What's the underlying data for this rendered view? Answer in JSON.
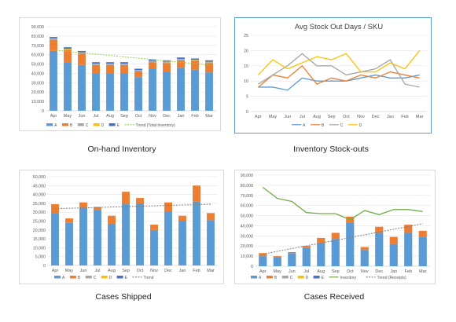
{
  "captions": {
    "onhand": "On-hand Inventory",
    "stockouts": "Inventory Stock-outs",
    "shipped": "Cases Shipped",
    "received": "Cases Received"
  },
  "months": [
    "Apr",
    "May",
    "Jun",
    "Jul",
    "Aug",
    "Sep",
    "Oct",
    "Nov",
    "Dec",
    "Jan",
    "Feb",
    "Mar"
  ],
  "colors": {
    "A": "#5b9bd5",
    "B": "#ed7d31",
    "C": "#a5a5a5",
    "D": "#ffc000",
    "E": "#4472c4",
    "inventory": "#70ad47",
    "trendGreen": "#92d050",
    "trendGray": "#7f7f7f"
  },
  "chart_data": [
    {
      "id": "onhand",
      "type": "bar",
      "stacked": true,
      "categories": [
        "Apr",
        "May",
        "Jun",
        "Jul",
        "Aug",
        "Sep",
        "Oct",
        "Nov",
        "Dec",
        "Jan",
        "Feb",
        "Mar"
      ],
      "ylim": [
        0,
        90000
      ],
      "yticks": [
        "0",
        "10,000",
        "20,000",
        "30,000",
        "40,000",
        "50,000",
        "60,000",
        "70,000",
        "80,000",
        "90,000"
      ],
      "series": [
        {
          "name": "A",
          "values": [
            64000,
            52000,
            49000,
            40000,
            40000,
            40000,
            36000,
            45000,
            42000,
            46000,
            44000,
            41000
          ]
        },
        {
          "name": "B",
          "values": [
            12000,
            13000,
            12000,
            9000,
            9000,
            9000,
            6000,
            7000,
            9000,
            8000,
            9000,
            10000
          ]
        },
        {
          "name": "C",
          "values": [
            1000,
            1000,
            1000,
            1000,
            1000,
            1000,
            1000,
            1000,
            1000,
            1000,
            1000,
            1000
          ]
        },
        {
          "name": "D",
          "values": [
            500,
            500,
            500,
            500,
            500,
            500,
            500,
            500,
            500,
            500,
            500,
            500
          ]
        },
        {
          "name": "E",
          "values": [
            1500,
            1500,
            1500,
            1500,
            1500,
            1500,
            1500,
            1500,
            1500,
            1500,
            1500,
            1500
          ]
        }
      ],
      "trend": {
        "name": "Trend (Total Inventory)",
        "start": 65000,
        "end": 49000
      },
      "legend": [
        "A",
        "B",
        "C",
        "D",
        "E",
        "Trend (Total Inventory)"
      ],
      "grid": true,
      "legend_position": "bottom"
    },
    {
      "id": "stockouts",
      "type": "line",
      "title": "Avg Stock Out Days / SKU",
      "categories": [
        "Apr",
        "May",
        "Jun",
        "Jul",
        "Aug",
        "Sep",
        "Oct",
        "Nov",
        "Dec",
        "Jan",
        "Feb",
        "Mar"
      ],
      "ylim": [
        0,
        25
      ],
      "yticks": [
        "0",
        "5",
        "10",
        "15",
        "20",
        "25"
      ],
      "series": [
        {
          "name": "A",
          "values": [
            8,
            8,
            7,
            11,
            10,
            10,
            10,
            11,
            12,
            11,
            11,
            12
          ]
        },
        {
          "name": "B",
          "values": [
            8,
            12,
            11,
            15,
            9,
            11,
            10,
            12,
            11,
            13,
            12,
            11
          ]
        },
        {
          "name": "C",
          "values": [
            9,
            12,
            15,
            19,
            15,
            15,
            12,
            13,
            14,
            17,
            9,
            8
          ]
        },
        {
          "name": "D",
          "values": [
            12,
            17,
            14,
            16,
            18,
            17,
            19,
            13,
            13,
            16,
            14,
            20
          ]
        }
      ],
      "legend": [
        "A",
        "B",
        "C",
        "D"
      ],
      "grid": true,
      "legend_position": "bottom"
    },
    {
      "id": "shipped",
      "type": "bar",
      "stacked": true,
      "categories": [
        "Apr",
        "May",
        "Jun",
        "Jul",
        "Aug",
        "Sep",
        "Oct",
        "Nov",
        "Dec",
        "Jan",
        "Feb",
        "Mar"
      ],
      "ylim": [
        0,
        50000
      ],
      "yticks": [
        "0",
        "5,000",
        "10,000",
        "15,000",
        "20,000",
        "25,000",
        "30,000",
        "35,000",
        "40,000",
        "45,000",
        "50,000"
      ],
      "series": [
        {
          "name": "A",
          "values": [
            29500,
            24000,
            32500,
            31000,
            23500,
            34500,
            35000,
            20000,
            30500,
            25000,
            36000,
            25500
          ]
        },
        {
          "name": "B",
          "values": [
            5000,
            2500,
            3000,
            2000,
            4500,
            7000,
            3000,
            3000,
            5000,
            3000,
            9000,
            4000
          ]
        },
        {
          "name": "C",
          "values": [
            0,
            0,
            0,
            0,
            0,
            0,
            0,
            0,
            0,
            0,
            0,
            0
          ]
        },
        {
          "name": "D",
          "values": [
            0,
            0,
            0,
            0,
            0,
            0,
            0,
            0,
            0,
            0,
            0,
            0
          ]
        },
        {
          "name": "E",
          "values": [
            0,
            0,
            0,
            0,
            0,
            0,
            0,
            0,
            0,
            0,
            0,
            0
          ]
        }
      ],
      "trend": {
        "name": "Trend",
        "start": 32000,
        "end": 34500
      },
      "legend": [
        "A",
        "B",
        "C",
        "D",
        "E",
        "Trend"
      ],
      "grid": true,
      "legend_position": "bottom"
    },
    {
      "id": "received",
      "type": "bar",
      "stacked": true,
      "categories": [
        "Apr",
        "May",
        "Jun",
        "Jul",
        "Aug",
        "Sep",
        "Oct",
        "Nov",
        "Dec",
        "Jan",
        "Feb",
        "Mar"
      ],
      "ylim": [
        0,
        90000
      ],
      "yticks": [
        "0",
        "10,000",
        "20,000",
        "30,000",
        "40,000",
        "50,000",
        "60,000",
        "70,000",
        "80,000",
        "90,000"
      ],
      "series": [
        {
          "name": "A",
          "values": [
            10000,
            9000,
            13000,
            18000,
            23000,
            27000,
            43000,
            16000,
            33000,
            22000,
            33000,
            29000
          ]
        },
        {
          "name": "B",
          "values": [
            3000,
            1000,
            1000,
            2000,
            5000,
            6000,
            6000,
            3000,
            6000,
            7000,
            8000,
            6000
          ]
        },
        {
          "name": "C",
          "values": [
            0,
            0,
            0,
            0,
            0,
            0,
            0,
            0,
            0,
            0,
            0,
            0
          ]
        },
        {
          "name": "D",
          "values": [
            0,
            0,
            0,
            0,
            0,
            0,
            0,
            0,
            0,
            0,
            0,
            0
          ]
        },
        {
          "name": "E",
          "values": [
            0,
            0,
            0,
            0,
            0,
            0,
            0,
            0,
            0,
            0,
            0,
            0
          ]
        }
      ],
      "inventory": {
        "name": "Inventory",
        "values": [
          78000,
          67000,
          64000,
          53000,
          52000,
          52000,
          46000,
          55000,
          51000,
          56000,
          56000,
          54000
        ]
      },
      "trend": {
        "name": "Trend (Receipts)",
        "start": 12000,
        "end": 42000
      },
      "legend": [
        "A",
        "B",
        "C",
        "D",
        "E",
        "Inventory",
        "Trend (Receipts)"
      ],
      "grid": true,
      "legend_position": "bottom"
    }
  ]
}
